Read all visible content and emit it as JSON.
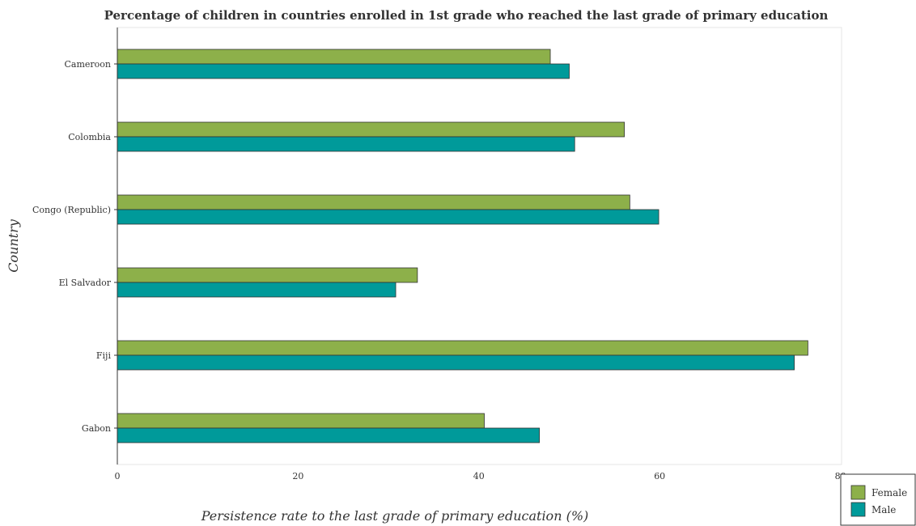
{
  "chart_data": {
    "type": "bar",
    "orientation": "horizontal",
    "title": "Percentage of children in countries enrolled in 1st grade who reached the last grade of primary education",
    "xlabel": "Persistence rate to the last grade of primary education (%)",
    "ylabel": "Country",
    "categories": [
      "Cameroon",
      "Colombia",
      "Congo (Republic)",
      "El Salvador",
      "Fiji",
      "Gabon"
    ],
    "series": [
      {
        "name": "Female",
        "color": "#8db04a",
        "values": [
          47.9,
          56.1,
          56.7,
          33.2,
          76.4,
          40.6
        ]
      },
      {
        "name": "Male",
        "color": "#009a9a",
        "values": [
          50.0,
          50.6,
          59.9,
          30.8,
          74.9,
          46.7
        ]
      }
    ],
    "xlim": [
      0,
      80
    ],
    "xticks": [
      "0",
      "20",
      "40",
      "60",
      "80"
    ],
    "grid": false,
    "legend_position": "bottom-right"
  }
}
